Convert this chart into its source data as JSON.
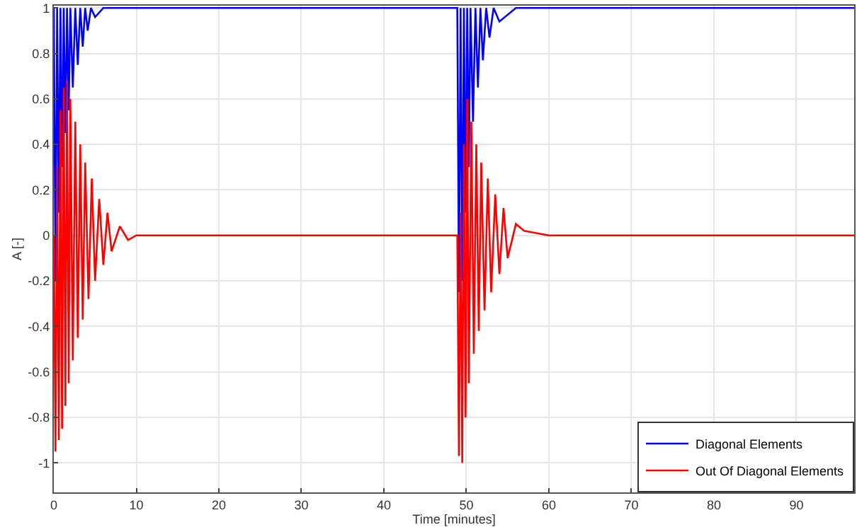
{
  "chart_data": {
    "type": "line",
    "xlabel": "Time [minutes]",
    "ylabel": "A [-]",
    "xlim": [
      0,
      97
    ],
    "ylim": [
      -1.13,
      1.01
    ],
    "xticks": [
      0,
      10,
      20,
      30,
      40,
      50,
      60,
      70,
      80,
      90
    ],
    "yticks": [
      -1,
      -0.8,
      -0.6,
      -0.4,
      -0.2,
      0,
      0.2,
      0.4,
      0.6,
      0.8,
      1
    ],
    "grid": true,
    "legend": "bottom right",
    "marker": "none",
    "line_style": "solid",
    "series": [
      {
        "name": "Diagonal Elements",
        "color": "#0000ff",
        "x": [
          0,
          0.2,
          0.4,
          0.6,
          0.8,
          1.0,
          1.2,
          1.4,
          1.6,
          1.8,
          2.0,
          2.3,
          2.6,
          2.9,
          3.2,
          3.5,
          3.8,
          4.1,
          4.5,
          5,
          6,
          10,
          20,
          30,
          40,
          48.9,
          49.1,
          49.3,
          49.5,
          49.7,
          49.9,
          50.1,
          50.3,
          50.5,
          50.8,
          51.1,
          51.4,
          51.7,
          52,
          52.4,
          52.8,
          53.3,
          54,
          56,
          60,
          70,
          80,
          90,
          97
        ],
        "values": [
          1,
          -0.2,
          1,
          0.1,
          1,
          0.3,
          1,
          0.45,
          1,
          0.55,
          1,
          0.65,
          1,
          0.75,
          1,
          0.83,
          1,
          0.9,
          1,
          0.96,
          1,
          1,
          1,
          1,
          1,
          1,
          -0.25,
          1,
          -0.2,
          1,
          0.1,
          1,
          0.3,
          1,
          0.5,
          1,
          0.65,
          1,
          0.77,
          1,
          0.87,
          1,
          0.94,
          1,
          1,
          1,
          1,
          1,
          1
        ]
      },
      {
        "name": "Out Of Diagonal Elements",
        "color": "#ff0000",
        "x": [
          0,
          0.2,
          0.4,
          0.6,
          0.8,
          1.0,
          1.2,
          1.4,
          1.6,
          1.8,
          2.0,
          2.3,
          2.6,
          2.9,
          3.2,
          3.5,
          3.8,
          4.2,
          4.6,
          5,
          5.5,
          6,
          6.5,
          7,
          8,
          9,
          10,
          20,
          30,
          40,
          48.9,
          49.1,
          49.3,
          49.5,
          49.7,
          49.9,
          50.1,
          50.3,
          50.6,
          50.9,
          51.2,
          51.5,
          51.8,
          52.2,
          52.6,
          53,
          53.5,
          54,
          54.5,
          55,
          56,
          57,
          60,
          70,
          80,
          90,
          97
        ],
        "values": [
          0,
          -0.95,
          0.3,
          -0.9,
          0.55,
          -0.85,
          0.65,
          -0.75,
          0.68,
          -0.65,
          0.6,
          -0.55,
          0.5,
          -0.45,
          0.4,
          -0.37,
          0.32,
          -0.28,
          0.25,
          -0.2,
          0.16,
          -0.13,
          0.1,
          -0.07,
          0.04,
          -0.02,
          0,
          0,
          0,
          0,
          0,
          -0.97,
          0.1,
          -1.0,
          0.4,
          -0.8,
          0.6,
          -0.65,
          0.5,
          -0.52,
          0.4,
          -0.42,
          0.32,
          -0.33,
          0.25,
          -0.25,
          0.18,
          -0.17,
          0.12,
          -0.1,
          0.05,
          0.02,
          0,
          0,
          0,
          0,
          0
        ]
      }
    ]
  }
}
